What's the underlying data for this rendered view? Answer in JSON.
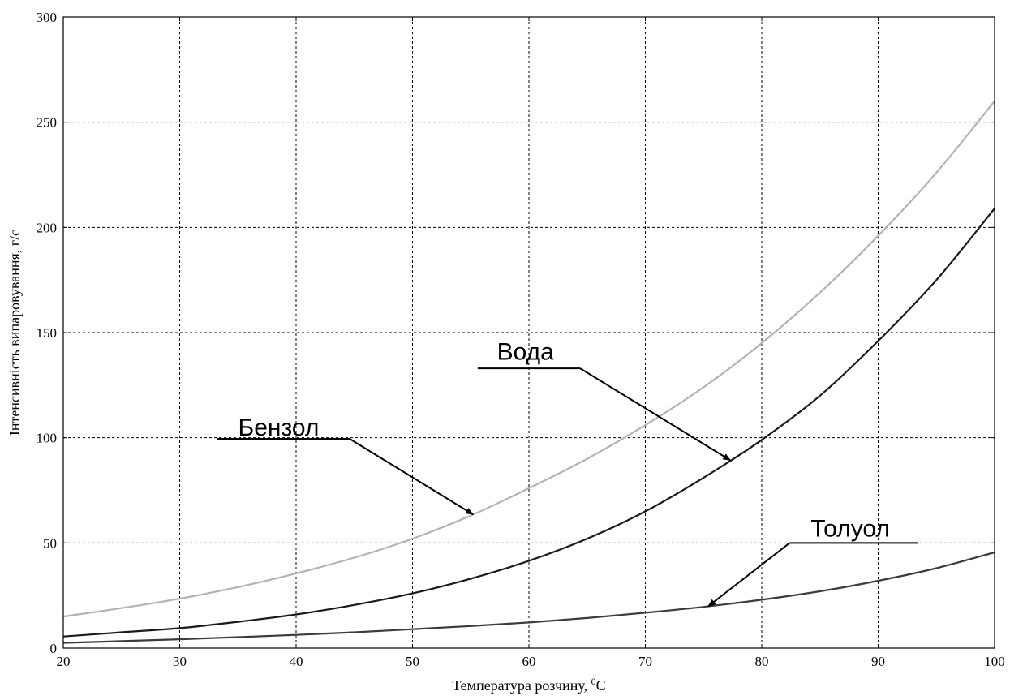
{
  "chart_data": {
    "type": "line",
    "title": "",
    "xlabel": "Температура розчину, ",
    "xlabel_unit_sup": "0",
    "xlabel_unit": "C",
    "ylabel": "Інтенсивність випаровування, г/с",
    "xlim": [
      20,
      100
    ],
    "ylim": [
      0,
      300
    ],
    "xticks": [
      20,
      30,
      40,
      50,
      60,
      70,
      80,
      90,
      100
    ],
    "yticks": [
      0,
      50,
      100,
      150,
      200,
      250,
      300
    ],
    "grid": true,
    "x": [
      20,
      25,
      30,
      35,
      40,
      45,
      50,
      55,
      60,
      65,
      70,
      75,
      80,
      85,
      90,
      95,
      100
    ],
    "series": [
      {
        "name": "Бензол",
        "color": "#b3b3b3",
        "values": [
          15,
          19,
          23.5,
          29,
          35.5,
          43,
          52,
          63,
          76,
          90,
          106,
          124,
          145,
          169,
          196,
          226,
          260
        ]
      },
      {
        "name": "Вода",
        "color": "#1a1a1a",
        "values": [
          5.5,
          7.5,
          9.5,
          12.5,
          16,
          20.5,
          26,
          33,
          41.5,
          52,
          65,
          81,
          99,
          120,
          146,
          175,
          209
        ]
      },
      {
        "name": "Толуол",
        "color": "#3c3c3c",
        "values": [
          2.5,
          3.3,
          4.2,
          5.2,
          6.3,
          7.5,
          9.0,
          10.5,
          12.2,
          14.3,
          16.8,
          19.6,
          23.0,
          27.0,
          32.0,
          38.0,
          45.5
        ]
      }
    ],
    "annotations": [
      {
        "text": "Бензол",
        "target_series": "Бензол",
        "target_x": 55.2,
        "label_x": 38.5,
        "label_y": 101,
        "line_x0": 33.2,
        "line_x1": 44.6,
        "line_y": 99.5
      },
      {
        "text": "Вода",
        "target_series": "Вода",
        "target_x": 77.3,
        "label_x": 59.7,
        "label_y": 137,
        "line_x0": 55.6,
        "line_x1": 64.4,
        "line_y": 133
      },
      {
        "text": "Толуол",
        "target_series": "Толуол",
        "target_x": 75.4,
        "label_x": 87.6,
        "label_y": 53,
        "line_x0": 82.4,
        "line_x1": 93.4,
        "line_y": 50
      }
    ]
  }
}
